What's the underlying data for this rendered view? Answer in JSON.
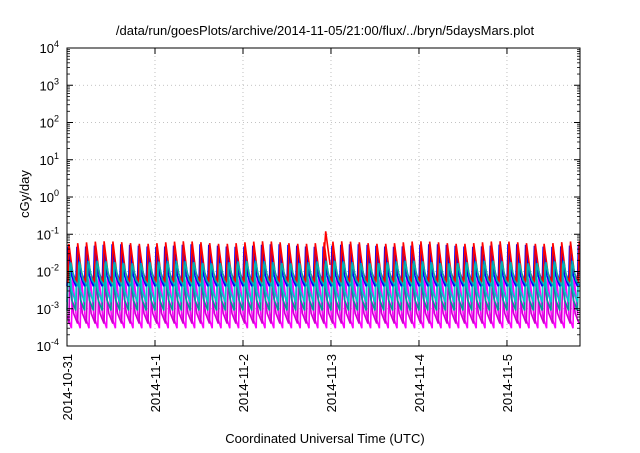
{
  "chart_data": {
    "type": "line",
    "title": "/data/run/goesPlots/archive/2014-11-05/21:00/flux/../bryn/5daysMars.plot",
    "xlabel": "Coordinated Universal Time (UTC)",
    "ylabel": "cGy/day",
    "x_ticks": [
      "2014-10-31",
      "2014-11-1",
      "2014-11-2",
      "2014-11-3",
      "2014-11-4",
      "2014-11-5"
    ],
    "xlim_days": [
      0,
      5.83
    ],
    "yscale": "log",
    "ylim": [
      0.0001,
      10000
    ],
    "y_ticks": [
      {
        "base": "10",
        "exp": "-4"
      },
      {
        "base": "10",
        "exp": "-3"
      },
      {
        "base": "10",
        "exp": "-2"
      },
      {
        "base": "10",
        "exp": "-1"
      },
      {
        "base": "10",
        "exp": "0"
      },
      {
        "base": "10",
        "exp": "1"
      },
      {
        "base": "10",
        "exp": "2"
      },
      {
        "base": "10",
        "exp": "3"
      },
      {
        "base": "10",
        "exp": "4"
      }
    ],
    "grid": true,
    "oscillation_period_days": 0.1,
    "series": [
      {
        "color": "#ff00ff",
        "peak": 0.007,
        "trough": 0.0003,
        "phase": 0.05
      },
      {
        "color": "#cc00cc",
        "peak": 0.005,
        "trough": 0.0004,
        "phase": 0.02
      },
      {
        "color": "#009999",
        "peak": 0.012,
        "trough": 0.0009,
        "phase": 0.0
      },
      {
        "color": "#00cccc",
        "peak": 0.025,
        "trough": 0.0015,
        "phase": 0.0
      },
      {
        "color": "#0000ff",
        "peak": 0.05,
        "trough": 0.004,
        "phase": 0.0
      },
      {
        "color": "#ff0000",
        "peak": 0.06,
        "trough": 0.005,
        "phase": 0.01
      },
      {
        "color": "#00b0b0",
        "peak": 0.018,
        "trough": 0.004,
        "phase": 0.03
      }
    ],
    "red_spike": {
      "day": 2.94,
      "value": 0.12
    }
  }
}
